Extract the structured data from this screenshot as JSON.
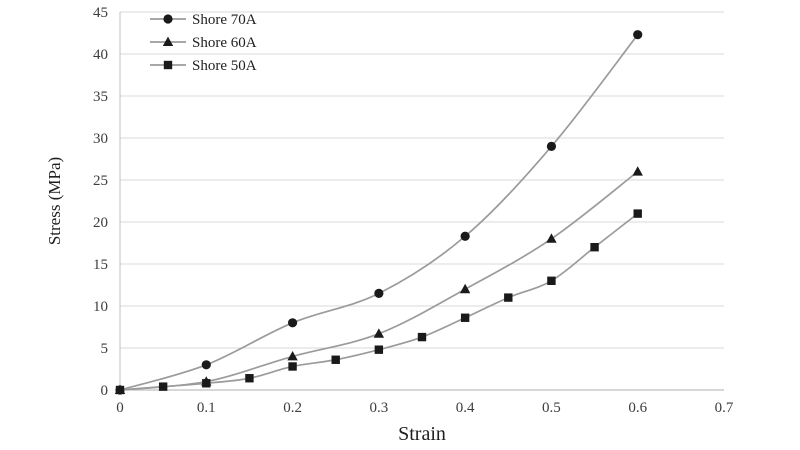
{
  "chart_data": {
    "type": "line",
    "title": "",
    "xlabel": "Strain",
    "ylabel": "Stress (MPa)",
    "xlim": [
      0,
      0.7
    ],
    "ylim": [
      0,
      45
    ],
    "xticks": [
      0,
      0.1,
      0.2,
      0.3,
      0.4,
      0.5,
      0.6,
      0.7
    ],
    "yticks": [
      0,
      5,
      10,
      15,
      20,
      25,
      30,
      35,
      40,
      45
    ],
    "grid": "horizontal",
    "legend_position": "top-left-inside",
    "line_color": "#9b9b9b",
    "marker_color": "#1a1a1a",
    "gridline_color": "#d9d9d9",
    "axis_line_color": "#bfbfbf",
    "text_color": "#3d3d3d",
    "series": [
      {
        "name": "Shore 70A",
        "marker": "circle",
        "x": [
          0,
          0.1,
          0.2,
          0.3,
          0.4,
          0.5,
          0.6
        ],
        "y": [
          0,
          3,
          8,
          11.5,
          18.3,
          29,
          42.3
        ]
      },
      {
        "name": "Shore 60A",
        "marker": "triangle",
        "x": [
          0,
          0.1,
          0.2,
          0.3,
          0.4,
          0.5,
          0.6
        ],
        "y": [
          0,
          1,
          4,
          6.7,
          12,
          18,
          26
        ]
      },
      {
        "name": "Shore 50A",
        "marker": "square",
        "x": [
          0,
          0.05,
          0.1,
          0.15,
          0.2,
          0.25,
          0.3,
          0.35,
          0.4,
          0.45,
          0.5,
          0.55,
          0.6
        ],
        "y": [
          0,
          0.4,
          0.8,
          1.4,
          2.8,
          3.6,
          4.8,
          6.3,
          8.6,
          11,
          13,
          17,
          21
        ]
      }
    ]
  }
}
